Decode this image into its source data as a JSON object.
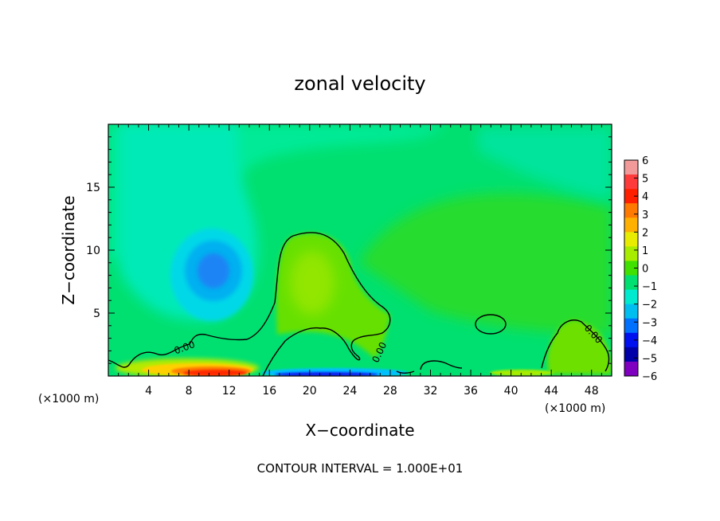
{
  "chart_data": {
    "type": "heatmap",
    "title": "zonal velocity",
    "xlabel": "X−coordinate",
    "ylabel": "Z−coordinate",
    "x_unit_left": "(×1000 m)",
    "x_unit_right": "(×1000 m)",
    "xlim": [
      0,
      50
    ],
    "ylim": [
      0,
      20
    ],
    "x_ticks": [
      4,
      8,
      12,
      16,
      20,
      24,
      28,
      32,
      36,
      40,
      44,
      48
    ],
    "x_tick_labels": [
      "4",
      "8",
      "12",
      "16",
      "20",
      "24",
      "28",
      "32",
      "36",
      "40",
      "44",
      "48"
    ],
    "y_ticks": [
      5,
      10,
      15
    ],
    "y_tick_labels": [
      "5",
      "10",
      "15"
    ],
    "colorbar": {
      "levels": [
        6,
        5,
        4,
        3,
        2,
        1,
        0,
        -1,
        -2,
        -3,
        -4,
        -5,
        -6
      ],
      "labels": [
        "6",
        "5",
        "4",
        "3",
        "2",
        "1",
        "0",
        "−1",
        "−2",
        "−3",
        "−4",
        "−5",
        "−6"
      ],
      "colors": [
        "#f29a9a",
        "#ff3a3a",
        "#ff2000",
        "#ff7a00",
        "#ffb000",
        "#e8ec00",
        "#a8ec00",
        "#40e000",
        "#00e070",
        "#00ead0",
        "#00bff0",
        "#0070ff",
        "#0010ee",
        "#0000a8",
        "#8000c0"
      ]
    },
    "contour_label": "0.00",
    "footnote": "CONTOUR INTERVAL = 1.000E+01",
    "features": [
      {
        "kind": "min",
        "x": 10.5,
        "z": 8.5,
        "value": -3
      },
      {
        "kind": "max",
        "x": 20,
        "z": 7.5,
        "value": 0.7
      },
      {
        "kind": "near-surface-max",
        "x": 10.5,
        "z": 0.3,
        "value": 5
      },
      {
        "kind": "near-surface-min",
        "x": 21,
        "z": 0.3,
        "value": -4
      }
    ]
  }
}
